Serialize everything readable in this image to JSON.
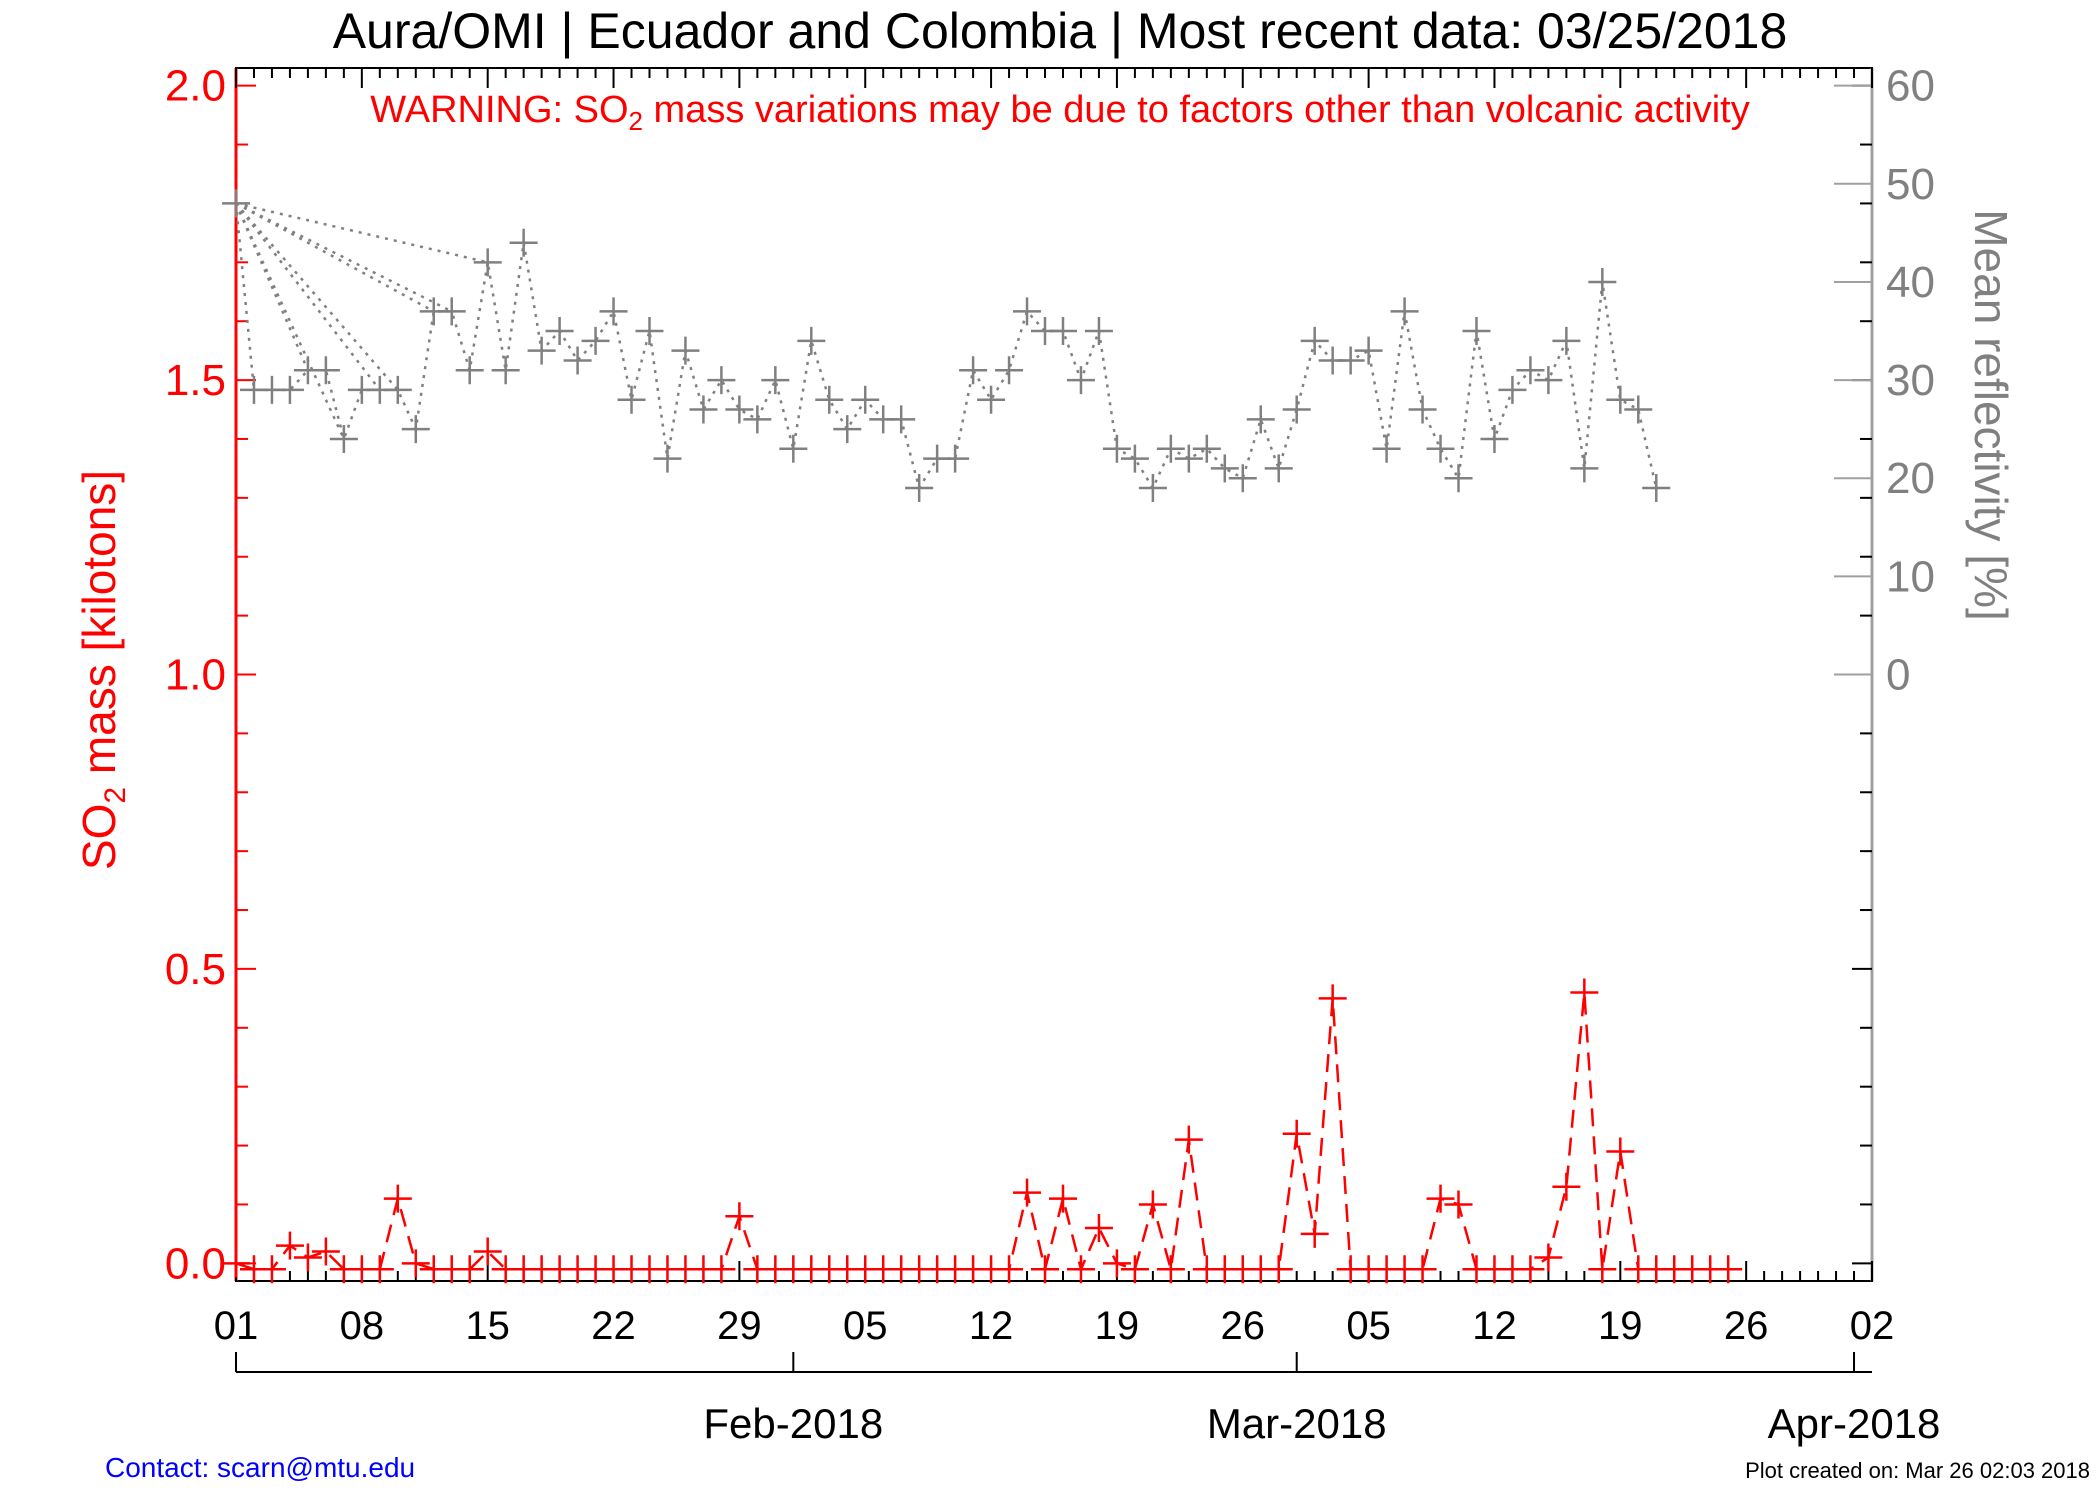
{
  "chart_data": {
    "type": "line",
    "title": "Aura/OMI | Ecuador and Colombia | Most recent data: 03/25/2018",
    "warning": {
      "prefix": "WARNING: SO",
      "sub": "2",
      "suffix": " mass variations may be due to factors other than volcanic activity"
    },
    "ylabel_left": {
      "prefix": "SO",
      "sub": "2",
      "suffix": " mass [kilotons]"
    },
    "ylabel_right": "Mean reflectivity [%]",
    "ylim_left": [
      -0.03,
      2.03
    ],
    "ylim_right": [
      0,
      60
    ],
    "left_tick_labels": [
      "0.0",
      "0.5",
      "1.0",
      "1.5",
      "2.0"
    ],
    "right_tick_labels": [
      "0",
      "10",
      "20",
      "30",
      "40",
      "50",
      "60"
    ],
    "x_day_labels": [
      "01",
      "08",
      "15",
      "22",
      "29",
      "05",
      "12",
      "19",
      "26",
      "05",
      "12",
      "19",
      "26",
      "02"
    ],
    "month_labels": [
      "Feb-2018",
      "Mar-2018",
      "Apr-2018"
    ],
    "xlim_days": [
      1,
      92
    ],
    "colors": {
      "so2": "#ff0000",
      "reflectivity": "#808080",
      "axis_right": "#a0a0a0",
      "contact": "#0000ff"
    },
    "series": [
      {
        "name": "SO2 mass",
        "axis": "left",
        "style": "dashed",
        "points": [
          [
            1,
            0.0
          ],
          [
            2,
            -0.01
          ],
          [
            3,
            -0.01
          ],
          [
            4,
            0.03
          ],
          [
            5,
            0.01
          ],
          [
            6,
            0.02
          ],
          [
            7,
            -0.01
          ],
          [
            8,
            -0.01
          ],
          [
            9,
            -0.01
          ],
          [
            10,
            0.11
          ],
          [
            11,
            0.0
          ],
          [
            12,
            -0.01
          ],
          [
            13,
            -0.01
          ],
          [
            14,
            -0.01
          ],
          [
            15,
            0.02
          ],
          [
            16,
            -0.01
          ],
          [
            17,
            -0.01
          ],
          [
            18,
            -0.01
          ],
          [
            19,
            -0.01
          ],
          [
            20,
            -0.01
          ],
          [
            21,
            -0.01
          ],
          [
            22,
            -0.01
          ],
          [
            23,
            -0.01
          ],
          [
            24,
            -0.01
          ],
          [
            25,
            -0.01
          ],
          [
            26,
            -0.01
          ],
          [
            27,
            -0.01
          ],
          [
            28,
            -0.01
          ],
          [
            29,
            0.08
          ],
          [
            30,
            -0.01
          ],
          [
            31,
            -0.01
          ],
          [
            32,
            -0.01
          ],
          [
            33,
            -0.01
          ],
          [
            34,
            -0.01
          ],
          [
            35,
            -0.01
          ],
          [
            36,
            -0.01
          ],
          [
            37,
            -0.01
          ],
          [
            38,
            -0.01
          ],
          [
            39,
            -0.01
          ],
          [
            40,
            -0.01
          ],
          [
            41,
            -0.01
          ],
          [
            42,
            -0.01
          ],
          [
            43,
            -0.01
          ],
          [
            44,
            -0.01
          ],
          [
            45,
            0.12
          ],
          [
            46,
            -0.01
          ],
          [
            47,
            0.11
          ],
          [
            48,
            -0.01
          ],
          [
            49,
            0.06
          ],
          [
            50,
            0.0
          ],
          [
            51,
            -0.01
          ],
          [
            52,
            0.1
          ],
          [
            53,
            -0.01
          ],
          [
            54,
            0.21
          ],
          [
            55,
            -0.01
          ],
          [
            56,
            -0.01
          ],
          [
            57,
            -0.01
          ],
          [
            58,
            -0.01
          ],
          [
            59,
            -0.01
          ],
          [
            60,
            0.22
          ],
          [
            61,
            0.05
          ],
          [
            62,
            0.45
          ],
          [
            63,
            -0.01
          ],
          [
            64,
            -0.01
          ],
          [
            65,
            -0.01
          ],
          [
            66,
            -0.01
          ],
          [
            67,
            -0.01
          ],
          [
            68,
            0.11
          ],
          [
            69,
            0.1
          ],
          [
            70,
            -0.01
          ],
          [
            71,
            -0.01
          ],
          [
            72,
            -0.01
          ],
          [
            73,
            -0.01
          ],
          [
            74,
            0.01
          ],
          [
            75,
            0.13
          ],
          [
            76,
            0.46
          ],
          [
            77,
            -0.01
          ],
          [
            78,
            0.19
          ],
          [
            79,
            -0.01
          ],
          [
            80,
            -0.01
          ],
          [
            81,
            -0.01
          ],
          [
            82,
            -0.01
          ],
          [
            83,
            -0.01
          ],
          [
            84,
            -0.01
          ]
        ]
      },
      {
        "name": "Mean reflectivity",
        "axis": "right",
        "style": "dotted",
        "points": [
          [
            1,
            48
          ],
          [
            2,
            29
          ],
          [
            3,
            29
          ],
          [
            4,
            29
          ],
          [
            5,
            31
          ],
          [
            6,
            31
          ],
          [
            7,
            24
          ],
          [
            8,
            29
          ],
          [
            9,
            29
          ],
          [
            10,
            29
          ],
          [
            11,
            25
          ],
          [
            12,
            37
          ],
          [
            13,
            37
          ],
          [
            14,
            31
          ],
          [
            15,
            42
          ],
          [
            16,
            31
          ],
          [
            17,
            44
          ],
          [
            18,
            33
          ],
          [
            19,
            35
          ],
          [
            20,
            32
          ],
          [
            21,
            34
          ],
          [
            22,
            37
          ],
          [
            23,
            28
          ],
          [
            24,
            35
          ],
          [
            25,
            22
          ],
          [
            26,
            33
          ],
          [
            27,
            27
          ],
          [
            28,
            30
          ],
          [
            29,
            27
          ],
          [
            30,
            26
          ],
          [
            31,
            30
          ],
          [
            32,
            23
          ],
          [
            33,
            34
          ],
          [
            34,
            28
          ],
          [
            35,
            25
          ],
          [
            36,
            28
          ],
          [
            37,
            26
          ],
          [
            38,
            26
          ],
          [
            39,
            19
          ],
          [
            40,
            22
          ],
          [
            41,
            22
          ],
          [
            42,
            31
          ],
          [
            43,
            28
          ],
          [
            44,
            31
          ],
          [
            45,
            37
          ],
          [
            46,
            35
          ],
          [
            47,
            35
          ],
          [
            48,
            30
          ],
          [
            49,
            35
          ],
          [
            50,
            23
          ],
          [
            51,
            22
          ],
          [
            52,
            19
          ],
          [
            53,
            23
          ],
          [
            54,
            22
          ],
          [
            55,
            23
          ],
          [
            56,
            21
          ],
          [
            57,
            20
          ],
          [
            58,
            26
          ],
          [
            59,
            21
          ],
          [
            60,
            27
          ],
          [
            61,
            34
          ],
          [
            62,
            32
          ],
          [
            63,
            32
          ],
          [
            64,
            33
          ],
          [
            65,
            23
          ],
          [
            66,
            37
          ],
          [
            67,
            27
          ],
          [
            68,
            23
          ],
          [
            69,
            20
          ],
          [
            70,
            35
          ],
          [
            71,
            24
          ],
          [
            72,
            29
          ],
          [
            73,
            31
          ],
          [
            74,
            30
          ],
          [
            75,
            34
          ],
          [
            76,
            21
          ],
          [
            77,
            40
          ],
          [
            78,
            28
          ],
          [
            79,
            27
          ],
          [
            80,
            19
          ]
        ]
      }
    ]
  },
  "footer": {
    "contact": "Contact: scarn@mtu.edu",
    "created": "Plot created on: Mar 26 02:03 2018"
  }
}
